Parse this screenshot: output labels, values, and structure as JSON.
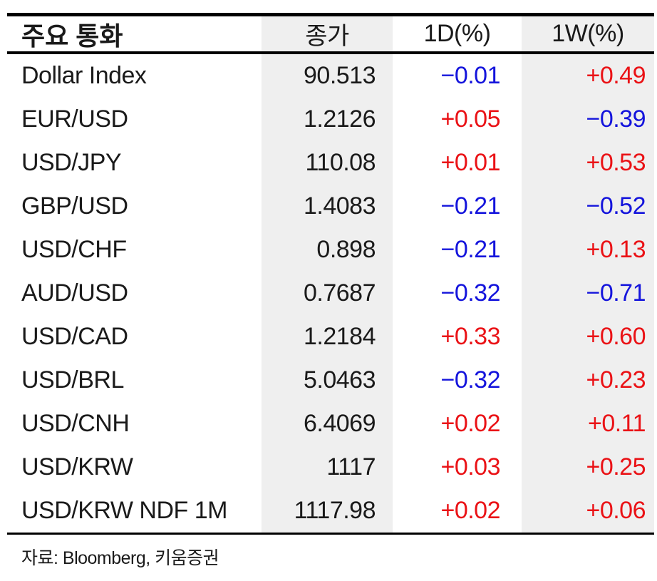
{
  "table": {
    "columns": [
      {
        "label": "주요 통화"
      },
      {
        "label": "종가"
      },
      {
        "label": "1D(%)"
      },
      {
        "label": "1W(%)"
      }
    ],
    "rows": [
      {
        "name": "Dollar Index",
        "close": "90.513",
        "d1": "−0.01",
        "d1_dir": "down",
        "w1": "+0.49",
        "w1_dir": "up"
      },
      {
        "name": "EUR/USD",
        "close": "1.2126",
        "d1": "+0.05",
        "d1_dir": "up",
        "w1": "−0.39",
        "w1_dir": "down"
      },
      {
        "name": "USD/JPY",
        "close": "110.08",
        "d1": "+0.01",
        "d1_dir": "up",
        "w1": "+0.53",
        "w1_dir": "up"
      },
      {
        "name": "GBP/USD",
        "close": "1.4083",
        "d1": "−0.21",
        "d1_dir": "down",
        "w1": "−0.52",
        "w1_dir": "down"
      },
      {
        "name": "USD/CHF",
        "close": "0.898",
        "d1": "−0.21",
        "d1_dir": "down",
        "w1": "+0.13",
        "w1_dir": "up"
      },
      {
        "name": "AUD/USD",
        "close": "0.7687",
        "d1": "−0.32",
        "d1_dir": "down",
        "w1": "−0.71",
        "w1_dir": "down"
      },
      {
        "name": "USD/CAD",
        "close": "1.2184",
        "d1": "+0.33",
        "d1_dir": "up",
        "w1": "+0.60",
        "w1_dir": "up"
      },
      {
        "name": "USD/BRL",
        "close": "5.0463",
        "d1": "−0.32",
        "d1_dir": "down",
        "w1": "+0.23",
        "w1_dir": "up"
      },
      {
        "name": "USD/CNH",
        "close": "6.4069",
        "d1": "+0.02",
        "d1_dir": "up",
        "w1": "+0.11",
        "w1_dir": "up"
      },
      {
        "name": "USD/KRW",
        "close": "1117",
        "d1": "+0.03",
        "d1_dir": "up",
        "w1": "+0.25",
        "w1_dir": "up"
      },
      {
        "name": "USD/KRW NDF 1M",
        "close": "1117.98",
        "d1": "+0.02",
        "d1_dir": "up",
        "w1": "+0.06",
        "w1_dir": "up"
      }
    ]
  },
  "footer": {
    "source": "자료: Bloomberg, 키움증권"
  },
  "colors": {
    "up": "#ea1216",
    "down": "#1414dc",
    "stripe": "#efefef",
    "border": "#000000"
  },
  "chart_data": {
    "type": "table",
    "title": "주요 통화",
    "columns": [
      "주요 통화",
      "종가",
      "1D(%)",
      "1W(%)"
    ],
    "rows": [
      [
        "Dollar Index",
        90.513,
        -0.01,
        0.49
      ],
      [
        "EUR/USD",
        1.2126,
        0.05,
        -0.39
      ],
      [
        "USD/JPY",
        110.08,
        0.01,
        0.53
      ],
      [
        "GBP/USD",
        1.4083,
        -0.21,
        -0.52
      ],
      [
        "USD/CHF",
        0.898,
        -0.21,
        0.13
      ],
      [
        "AUD/USD",
        0.7687,
        -0.32,
        -0.71
      ],
      [
        "USD/CAD",
        1.2184,
        0.33,
        0.6
      ],
      [
        "USD/BRL",
        5.0463,
        -0.32,
        0.23
      ],
      [
        "USD/CNH",
        6.4069,
        0.02,
        0.11
      ],
      [
        "USD/KRW",
        1117,
        0.03,
        0.25
      ],
      [
        "USD/KRW NDF 1M",
        1117.98,
        0.02,
        0.06
      ]
    ],
    "legend": "positive change = red, negative change = blue",
    "source": "자료: Bloomberg, 키움증권"
  }
}
